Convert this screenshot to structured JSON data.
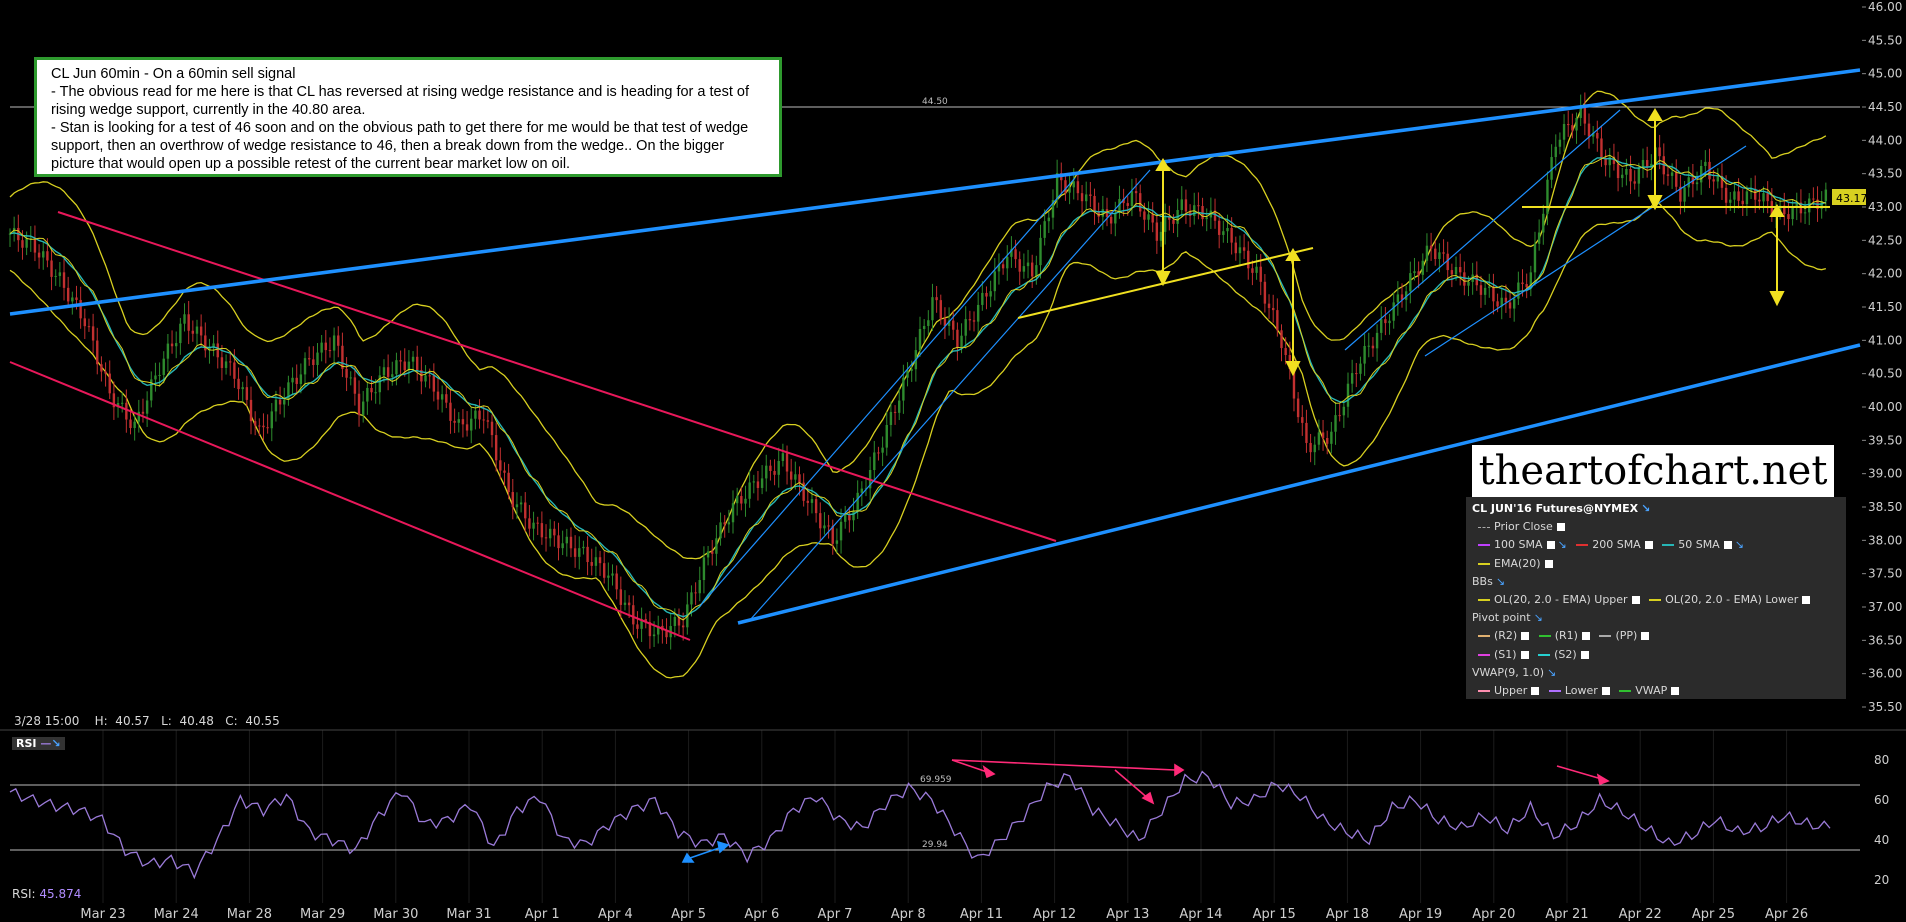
{
  "note": {
    "title": "CL Jun 60min - On a 60min sell signal",
    "line1": "- The obvious read for me here is that CL has reversed at rising wedge resistance and is heading for a test of rising wedge support, currently in the 40.80 area.",
    "line2": "- Stan is looking for a test of 46 soon and on the obvious path to get there for me would be that test of wedge support, then an overthrow of wedge resistance to 46, then a break down from the wedge.. On the bigger picture that would open up a possible retest of the current bear market low on oil."
  },
  "watermark": "theartofchart.net",
  "legend": {
    "title": "CL JUN'16 Futures@NYMEX",
    "prior_close": "Prior Close",
    "sma100": "100 SMA",
    "sma200": "200 SMA",
    "sma50": "50 SMA",
    "ema": "EMA(20)",
    "bbs": "BBs",
    "bb_upper": "OL(20, 2.0 - EMA) Upper",
    "bb_lower": "OL(20, 2.0 - EMA) Lower",
    "pivot": "Pivot point",
    "r2": "(R2)",
    "r1": "(R1)",
    "pp": "(PP)",
    "s1": "(S1)",
    "s2": "(S2)",
    "vwap": "VWAP(9, 1.0)",
    "upper": "Upper",
    "lower": "Lower",
    "vwap_item": "VWAP"
  },
  "ohlc": {
    "date": "3/28 15:00",
    "h": "H:  40.57",
    "l": "L:  40.48",
    "c": "C:  40.55"
  },
  "rsi": {
    "tag": "RSI",
    "label": "RSI:",
    "value": "45.874",
    "overbought_label": "69.959",
    "oversold_label": "29.94"
  },
  "hline_label": "44.50",
  "last_price": "43.17",
  "colors": {
    "background": "#000000",
    "wedge": "#1e90ff",
    "channel": "#e8185a",
    "bands": "#d8d020",
    "price_up": "#2e8b2e",
    "price_down": "#c23030",
    "ema": "#26b5b5",
    "rsi": "#9a7ad8",
    "arrows": "#f0e020"
  },
  "chart_data": {
    "type": "line",
    "x_ticks": [
      "Mar 23",
      "Mar 24",
      "Mar 28",
      "Mar 29",
      "Mar 30",
      "Mar 31",
      "Apr 1",
      "Apr 4",
      "Apr 5",
      "Apr 6",
      "Apr 7",
      "Apr 8",
      "Apr 11",
      "Apr 12",
      "Apr 13",
      "Apr 14",
      "Apr 15",
      "Apr 18",
      "Apr 19",
      "Apr 20",
      "Apr 21",
      "Apr 22",
      "Apr 25",
      "Apr 26"
    ],
    "y_ticks": [
      "46.00",
      "45.50",
      "45.00",
      "44.50",
      "44.00",
      "43.50",
      "43.00",
      "42.50",
      "42.00",
      "41.50",
      "41.00",
      "40.50",
      "40.00",
      "39.50",
      "39.00",
      "38.50",
      "38.00",
      "37.50",
      "37.00",
      "36.50",
      "36.00",
      "35.50"
    ],
    "ylim": [
      35.3,
      46.0
    ],
    "rsi_ticks": [
      "80",
      "60",
      "40",
      "20"
    ],
    "rsi_ylim": [
      10,
      90
    ],
    "series": [
      {
        "values": [
          42.6,
          42.4,
          41.9,
          41.3,
          40.2,
          39.7,
          40.6,
          41.3,
          40.9,
          40.5,
          39.6,
          40.2,
          40.7,
          41.0,
          40.0,
          40.5,
          40.7,
          40.3,
          39.7,
          39.9,
          38.7,
          38.2,
          38.0,
          37.8,
          37.5,
          36.8,
          36.6,
          36.8,
          37.8,
          38.5,
          38.9,
          39.2,
          38.6,
          38.0,
          38.6,
          39.5,
          40.5,
          41.6,
          41.0,
          41.6,
          42.3,
          42.0,
          43.4,
          43.2,
          42.8,
          43.2,
          42.6,
          43.0,
          42.9,
          42.5,
          42.0,
          41.0,
          39.4,
          39.6,
          40.6,
          41.2,
          41.8,
          42.4,
          42.0,
          41.8,
          41.5,
          42.0,
          44.0,
          44.4,
          43.7,
          43.4,
          43.8,
          43.2,
          43.6,
          43.1,
          43.2,
          42.9,
          43.0,
          43.17
        ]
      }
    ],
    "rsi_values": [
      64,
      60,
      57,
      55,
      50,
      35,
      28,
      30,
      24,
      40,
      60,
      55,
      62,
      44,
      40,
      35,
      52,
      65,
      48,
      50,
      58,
      36,
      55,
      62,
      40,
      38,
      48,
      55,
      60,
      44,
      38,
      42,
      32,
      40,
      55,
      62,
      50,
      46,
      58,
      66,
      60,
      45,
      30,
      40,
      52,
      66,
      72,
      55,
      48,
      40,
      55,
      70,
      72,
      58,
      60,
      68,
      62,
      50,
      44,
      40,
      56,
      60,
      50,
      46,
      52,
      45,
      56,
      42,
      48,
      60,
      54,
      46,
      38,
      42,
      50,
      44,
      46,
      52,
      48,
      45.874
    ],
    "annotations": {
      "bar_label": "44.50",
      "rsi_overbought": "69.959",
      "rsi_oversold": "29.94"
    }
  }
}
